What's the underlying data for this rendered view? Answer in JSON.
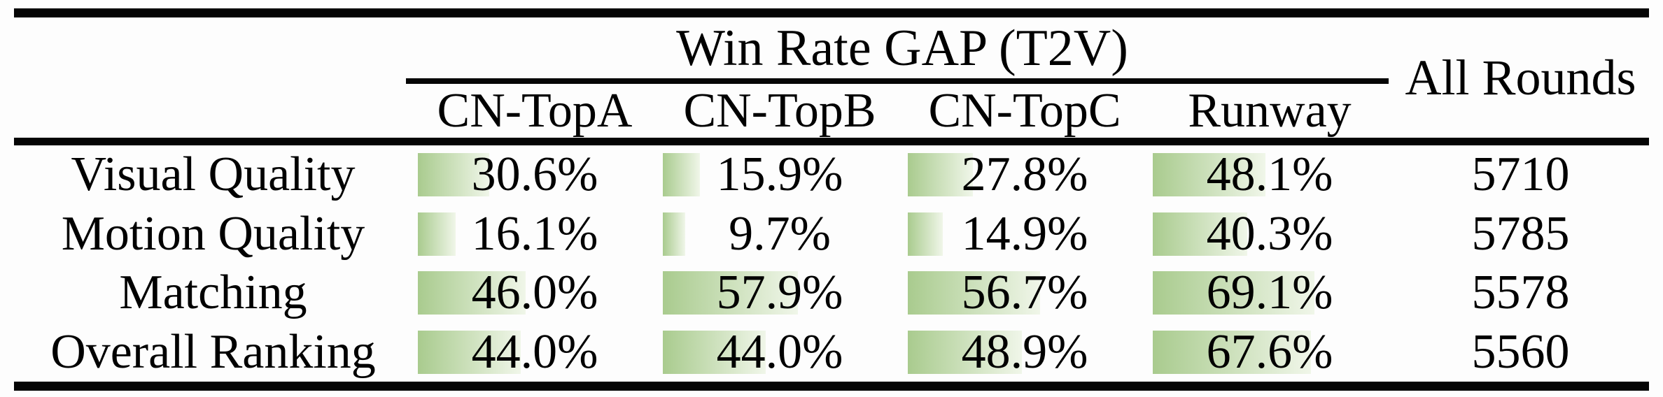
{
  "table": {
    "group_header": "Win Rate GAP (T2V)",
    "all_rounds_header": "All Rounds",
    "columns": [
      "CN-TopA",
      "CN-TopB",
      "CN-TopC",
      "Runway"
    ],
    "rows": [
      {
        "label": "Visual Quality",
        "gaps": [
          "30.6",
          "15.9",
          "27.8",
          "48.1"
        ],
        "rounds": "5710"
      },
      {
        "label": "Motion Quality",
        "gaps": [
          "16.1",
          "9.7",
          "14.9",
          "40.3"
        ],
        "rounds": "5785"
      },
      {
        "label": "Matching",
        "gaps": [
          "46.0",
          "57.9",
          "56.7",
          "69.1"
        ],
        "rounds": "5578"
      },
      {
        "label": "Overall Ranking",
        "gaps": [
          "44.0",
          "44.0",
          "48.9",
          "67.6"
        ],
        "rounds": "5560"
      }
    ],
    "percent_suffix": "%",
    "bar_color_start": "#a9cb8e",
    "bar_color_end": "#f0f6e9",
    "rule_color": "#050505"
  },
  "chart_data": {
    "type": "table",
    "title": "Win Rate GAP (T2V)",
    "categories": [
      "Visual Quality",
      "Motion Quality",
      "Matching",
      "Overall Ranking"
    ],
    "series": [
      {
        "name": "CN-TopA",
        "values": [
          30.6,
          16.1,
          46.0,
          44.0
        ]
      },
      {
        "name": "CN-TopB",
        "values": [
          15.9,
          9.7,
          57.9,
          44.0
        ]
      },
      {
        "name": "CN-TopC",
        "values": [
          27.8,
          14.9,
          56.7,
          48.9
        ]
      },
      {
        "name": "Runway",
        "values": [
          48.1,
          40.3,
          69.1,
          67.6
        ]
      }
    ],
    "extra_column": {
      "name": "All Rounds",
      "values": [
        5710,
        5785,
        5578,
        5560
      ]
    },
    "unit": "%",
    "value_range": [
      0,
      100
    ],
    "bars": "in-cell gradient data bars, length proportional to value"
  }
}
